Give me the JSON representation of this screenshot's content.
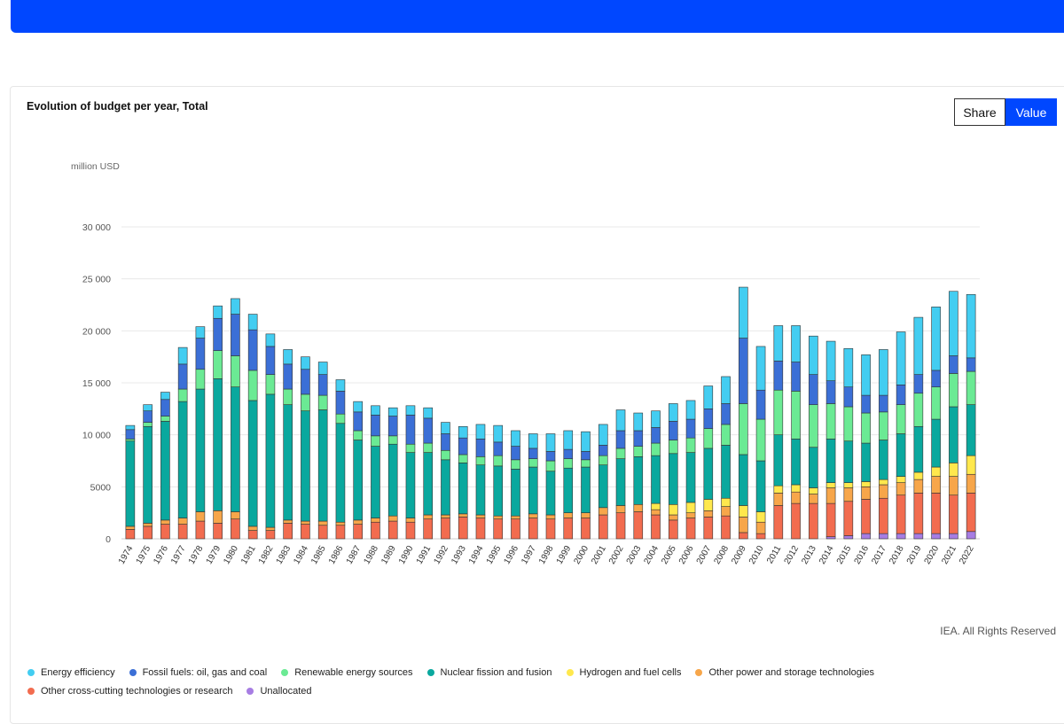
{
  "header": {
    "title": "Evolution of budget per year, Total"
  },
  "toggle": {
    "share_label": "Share",
    "value_label": "Value"
  },
  "footer": {
    "copyright": "IEA. All Rights Reserved"
  },
  "chart_data": {
    "type": "bar",
    "stacked": true,
    "title": "Evolution of budget per year, Total",
    "ylabel": "million USD",
    "xlabel": "",
    "ylim": [
      0,
      30000
    ],
    "yticks": [
      0,
      5000,
      10000,
      15000,
      20000,
      25000,
      30000
    ],
    "ytick_labels": [
      "0",
      "5000",
      "10 000",
      "15 000",
      "20 000",
      "25 000",
      "30 000"
    ],
    "legend_position": "bottom",
    "grid": true,
    "categories": [
      "1974",
      "1975",
      "1976",
      "1977",
      "1978",
      "1979",
      "1980",
      "1981",
      "1982",
      "1983",
      "1984",
      "1985",
      "1986",
      "1987",
      "1988",
      "1989",
      "1990",
      "1991",
      "1992",
      "1993",
      "1994",
      "1995",
      "1996",
      "1997",
      "1998",
      "1999",
      "2000",
      "2001",
      "2002",
      "2003",
      "2004",
      "2005",
      "2006",
      "2007",
      "2008",
      "2009",
      "2010",
      "2011",
      "2012",
      "2013",
      "2014",
      "2015",
      "2016",
      "2017",
      "2018",
      "2019",
      "2020",
      "2021",
      "2022"
    ],
    "series": [
      {
        "name": "Unallocated",
        "color": "#a77de3",
        "values": [
          0,
          0,
          0,
          0,
          0,
          0,
          0,
          0,
          0,
          0,
          0,
          0,
          0,
          0,
          0,
          0,
          0,
          0,
          0,
          0,
          0,
          0,
          0,
          0,
          0,
          0,
          0,
          0,
          0,
          0,
          0,
          0,
          0,
          0,
          0,
          0,
          0,
          0,
          0,
          0,
          200,
          300,
          500,
          500,
          500,
          500,
          500,
          500,
          700
        ]
      },
      {
        "name": "Other cross-cutting technologies or research",
        "color": "#f26c4f",
        "values": [
          900,
          1200,
          1400,
          1400,
          1700,
          1500,
          1900,
          800,
          800,
          1500,
          1400,
          1300,
          1300,
          1400,
          1600,
          1700,
          1600,
          1900,
          2000,
          2100,
          2000,
          1900,
          1900,
          2000,
          1900,
          2000,
          2000,
          2300,
          2500,
          2600,
          2300,
          1800,
          2000,
          2100,
          2200,
          600,
          500,
          3200,
          3400,
          3400,
          3200,
          3300,
          3300,
          3400,
          3700,
          3900,
          3900,
          3700,
          3700
        ]
      },
      {
        "name": "Other power and storage technologies",
        "color": "#f7a64a",
        "values": [
          300,
          300,
          400,
          600,
          900,
          1200,
          700,
          400,
          300,
          300,
          300,
          400,
          300,
          400,
          400,
          500,
          400,
          400,
          300,
          300,
          300,
          300,
          300,
          400,
          400,
          500,
          500,
          700,
          700,
          700,
          500,
          500,
          500,
          600,
          900,
          1500,
          1100,
          1200,
          1100,
          900,
          1500,
          1300,
          1200,
          1300,
          1200,
          1300,
          1600,
          1800,
          1800
        ]
      },
      {
        "name": "Hydrogen and fuel cells",
        "color": "#ffe84d",
        "values": [
          0,
          0,
          0,
          0,
          0,
          0,
          0,
          0,
          0,
          0,
          0,
          0,
          0,
          0,
          0,
          0,
          0,
          0,
          0,
          0,
          0,
          0,
          0,
          0,
          0,
          0,
          0,
          0,
          0,
          0,
          600,
          1000,
          1000,
          1100,
          800,
          1100,
          1000,
          700,
          700,
          600,
          500,
          500,
          500,
          500,
          600,
          700,
          900,
          1300,
          1800
        ]
      },
      {
        "name": "Nuclear fission and fusion",
        "color": "#0aa89e",
        "values": [
          8200,
          9300,
          9500,
          11200,
          11800,
          12700,
          12000,
          12100,
          12800,
          11100,
          10600,
          10700,
          9500,
          7700,
          6900,
          6900,
          6300,
          6000,
          5300,
          4900,
          4800,
          4800,
          4500,
          4500,
          4200,
          4300,
          4400,
          4100,
          4500,
          4600,
          4600,
          4900,
          4800,
          4900,
          5100,
          4900,
          4900,
          4900,
          4400,
          3900,
          4200,
          4000,
          3700,
          3800,
          4100,
          4400,
          4600,
          5400,
          4900
        ]
      },
      {
        "name": "Renewable energy sources",
        "color": "#6bea94",
        "values": [
          200,
          400,
          500,
          1200,
          1900,
          2700,
          3000,
          2900,
          1900,
          1500,
          1600,
          1400,
          900,
          900,
          1000,
          800,
          800,
          900,
          900,
          800,
          800,
          1000,
          900,
          800,
          1000,
          900,
          700,
          900,
          1000,
          1000,
          1200,
          1300,
          1400,
          1900,
          2000,
          4900,
          4000,
          4300,
          4600,
          4100,
          3400,
          3300,
          2900,
          2700,
          2800,
          3200,
          3100,
          3200,
          3200
        ]
      },
      {
        "name": "Fossil fuels: oil, gas and coal",
        "color": "#3b6fd6",
        "values": [
          900,
          1100,
          1600,
          2400,
          3000,
          3100,
          4000,
          3900,
          2700,
          2400,
          2400,
          2000,
          2200,
          1800,
          2000,
          1900,
          2800,
          2400,
          1600,
          1600,
          1700,
          1300,
          1300,
          1000,
          900,
          900,
          800,
          1000,
          1700,
          1500,
          1500,
          1800,
          1800,
          1900,
          2000,
          6300,
          2800,
          2800,
          2800,
          2900,
          2200,
          1900,
          1700,
          1600,
          1900,
          1800,
          1600,
          1700,
          1300
        ]
      },
      {
        "name": "Energy efficiency",
        "color": "#43cdf1",
        "values": [
          400,
          600,
          700,
          1600,
          1100,
          1200,
          1500,
          1500,
          1200,
          1400,
          1200,
          1200,
          1100,
          1000,
          900,
          800,
          900,
          1000,
          1100,
          1100,
          1400,
          1600,
          1500,
          1400,
          1700,
          1800,
          1900,
          2000,
          2000,
          1700,
          1600,
          1700,
          1800,
          2200,
          2600,
          4900,
          4200,
          3400,
          3500,
          3700,
          3800,
          3700,
          3900,
          4400,
          5100,
          5500,
          6100,
          6200,
          6100
        ]
      }
    ]
  }
}
